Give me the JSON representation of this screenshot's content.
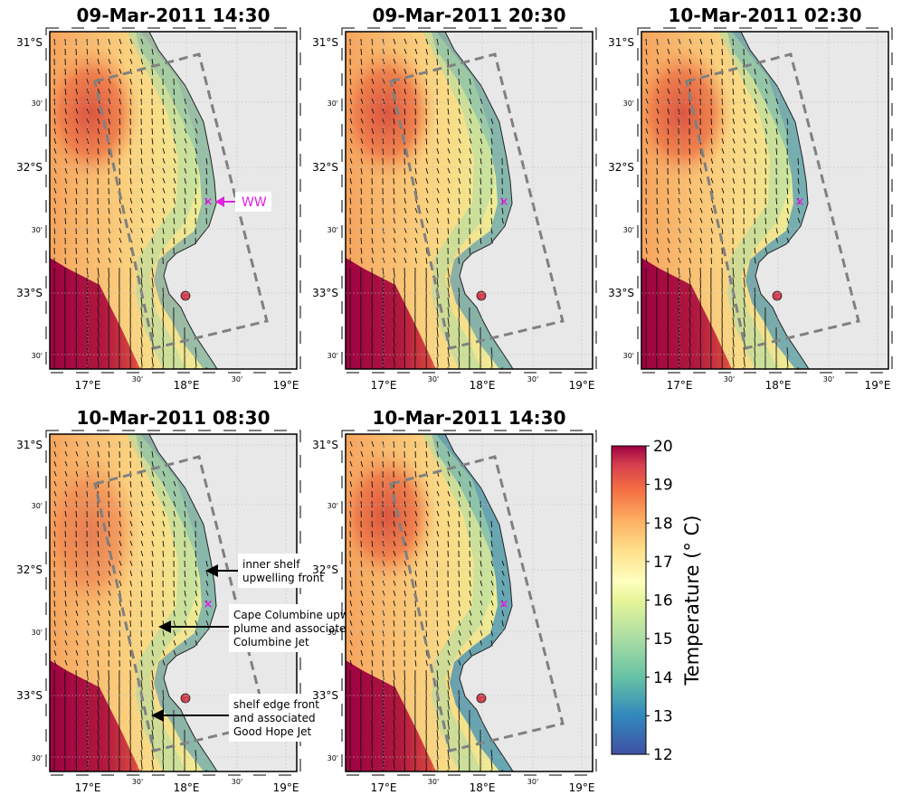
{
  "panels": [
    {
      "title": "09-Mar-2011 14:30",
      "station_label": "WW"
    },
    {
      "title": "09-Mar-2011 20:30"
    },
    {
      "title": "10-Mar-2011 02:30"
    },
    {
      "title": "10-Mar-2011 08:30",
      "annotations": [
        {
          "lines": [
            "inner shelf",
            "upwelling front"
          ]
        },
        {
          "lines": [
            "Cape Columbine upwelling",
            "plume and associated",
            "Columbine Jet"
          ]
        },
        {
          "lines": [
            "shelf edge front",
            "and associated",
            "Good Hope Jet"
          ]
        }
      ]
    },
    {
      "title": "10-Mar-2011 14:30"
    }
  ],
  "axes": {
    "lat_labels": [
      "31°S",
      "30'",
      "32°S",
      "30'",
      "33°S",
      "30'"
    ],
    "lon_labels": [
      "17°E",
      "30'",
      "18°E",
      "30'",
      "19°E"
    ]
  },
  "colorbar": {
    "label": "Temperature (° C)",
    "ticks": [
      "20",
      "19",
      "18",
      "17",
      "16",
      "15",
      "14",
      "13",
      "12"
    ],
    "min": 12,
    "max": 20
  },
  "colors": {
    "land": "#e8e8e8",
    "station_marker": "#e022e0",
    "box": "#808080"
  }
}
